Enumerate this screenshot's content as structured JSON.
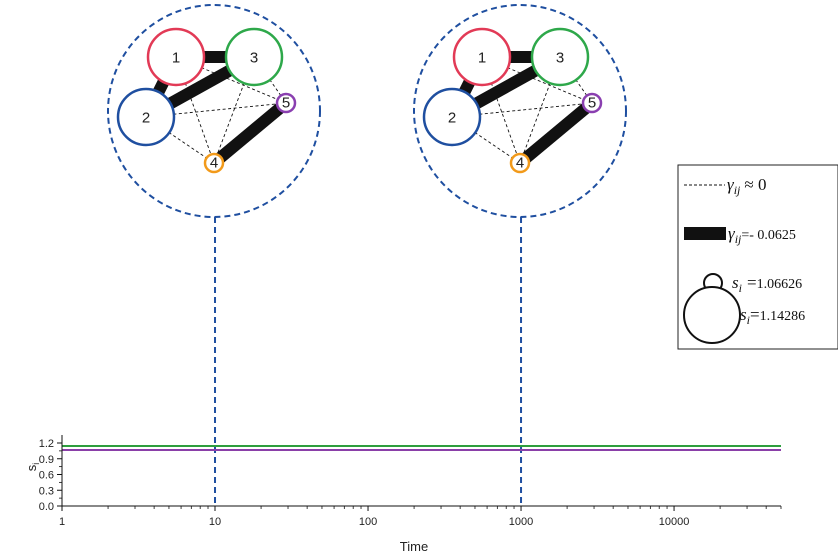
{
  "chart_data": {
    "type": "line",
    "xlabel": "Time",
    "ylabel": "s",
    "ylabel_sub": "i",
    "x_scale": "log",
    "xlim": [
      1,
      50000
    ],
    "ylim": [
      0.0,
      1.2
    ],
    "x_ticks": [
      {
        "value": 1,
        "label": "1"
      },
      {
        "value": 10,
        "label": "10"
      },
      {
        "value": 100,
        "label": "100"
      },
      {
        "value": 1000,
        "label": "1000"
      },
      {
        "value": 10000,
        "label": "10000"
      }
    ],
    "y_ticks": [
      {
        "value": 0.0,
        "label": "0.0"
      },
      {
        "value": 0.3,
        "label": "0.3"
      },
      {
        "value": 0.6,
        "label": "0.6"
      },
      {
        "value": 0.9,
        "label": "0.9"
      },
      {
        "value": 1.2,
        "label": "1.2"
      }
    ],
    "series": [
      {
        "color": "#e23a56",
        "x": [
          1,
          50000
        ],
        "y": [
          1.14286,
          1.14286
        ]
      },
      {
        "color": "#3b4fa8",
        "x": [
          1,
          50000
        ],
        "y": [
          1.14286,
          1.14286
        ]
      },
      {
        "color": "#2e9e3e",
        "x": [
          1,
          50000
        ],
        "y": [
          1.14286,
          1.14286
        ]
      },
      {
        "color": "#f5a11b",
        "x": [
          1,
          50000
        ],
        "y": [
          1.06626,
          1.06626
        ]
      },
      {
        "color": "#8a3fa8",
        "x": [
          1,
          50000
        ],
        "y": [
          1.06626,
          1.06626
        ]
      }
    ],
    "markers": [
      10,
      1000
    ]
  },
  "network": {
    "nodes": [
      {
        "id": "1",
        "label": "1",
        "color": "#e23a56",
        "s": 1.14286
      },
      {
        "id": "2",
        "label": "2",
        "color": "#1f4fa0",
        "s": 1.14286
      },
      {
        "id": "3",
        "label": "3",
        "color": "#2ea84a",
        "s": 1.14286
      },
      {
        "id": "4",
        "label": "4",
        "color": "#f29a1a",
        "s": 1.06626
      },
      {
        "id": "5",
        "label": "5",
        "color": "#8a3fb0",
        "s": 1.06626
      }
    ],
    "strong_edges": [
      [
        "1",
        "2"
      ],
      [
        "1",
        "3"
      ],
      [
        "2",
        "3"
      ],
      [
        "4",
        "5"
      ]
    ],
    "weak_edges": [
      [
        "1",
        "4"
      ],
      [
        "1",
        "5"
      ],
      [
        "2",
        "4"
      ],
      [
        "2",
        "5"
      ],
      [
        "3",
        "4"
      ],
      [
        "3",
        "5"
      ]
    ],
    "snapshots": [
      10,
      1000
    ]
  },
  "legend": {
    "weak": {
      "symbol": "γ",
      "sub": "ij",
      "rel": "≈ 0"
    },
    "strong": {
      "symbol": "γ",
      "sub": "ij",
      "rel": "=- 0.0625"
    },
    "small": {
      "symbol": "s",
      "sub": "i",
      "rel": "=",
      "value": "1.06626"
    },
    "large": {
      "symbol": "s",
      "sub": "i",
      "rel": "=",
      "value": "1.14286"
    }
  }
}
